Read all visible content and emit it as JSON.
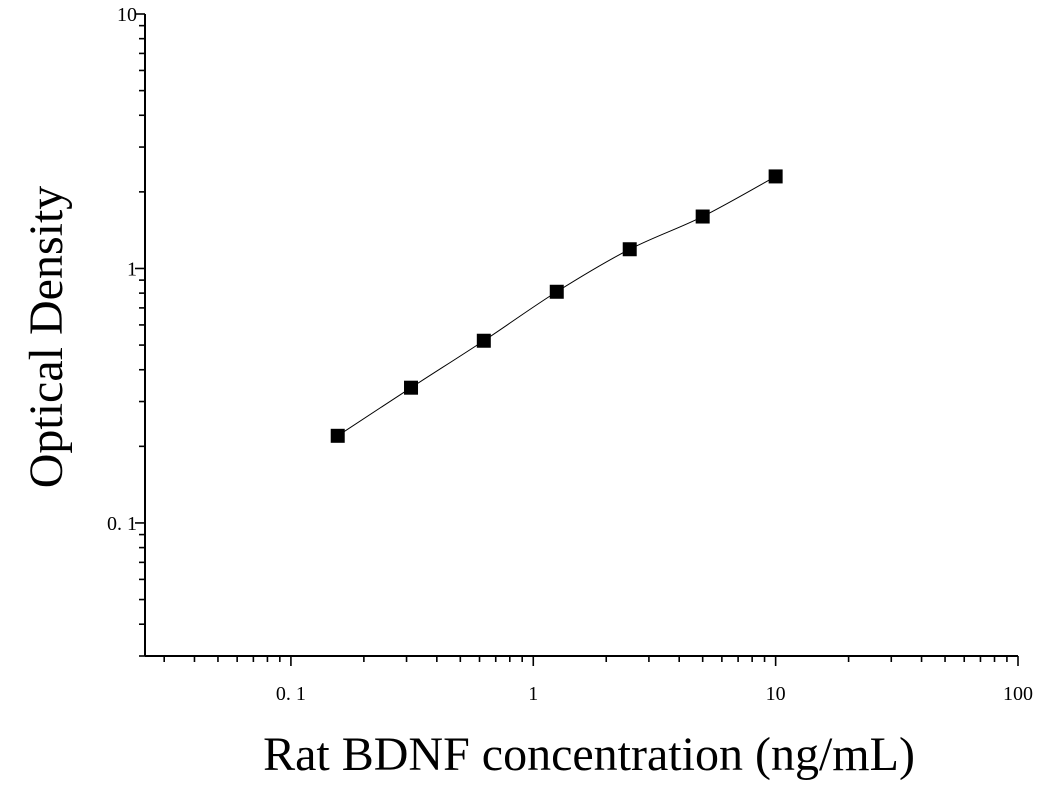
{
  "chart_data": {
    "type": "scatter",
    "xlabel": "Rat BDNF concentration (ng/mL)",
    "ylabel": "Optical Density",
    "xscale": "log",
    "yscale": "log",
    "xlim": [
      0.025,
      100
    ],
    "ylim": [
      0.03,
      10
    ],
    "x_tick_labels": [
      {
        "value": 0.1,
        "label": "0. 1"
      },
      {
        "value": 1,
        "label": "1"
      },
      {
        "value": 10,
        "label": "10"
      },
      {
        "value": 100,
        "label": "100"
      }
    ],
    "y_tick_labels": [
      {
        "value": 0.1,
        "label": "0. 1"
      },
      {
        "value": 1,
        "label": "1"
      },
      {
        "value": 10,
        "label": "10"
      }
    ],
    "grid": false,
    "series": [
      {
        "marker": "square",
        "color": "#000000",
        "x": [
          0.156,
          0.313,
          0.625,
          1.25,
          2.5,
          5,
          10
        ],
        "y": [
          0.22,
          0.34,
          0.52,
          0.81,
          1.19,
          1.6,
          2.3
        ]
      }
    ],
    "fit_curve": true
  }
}
